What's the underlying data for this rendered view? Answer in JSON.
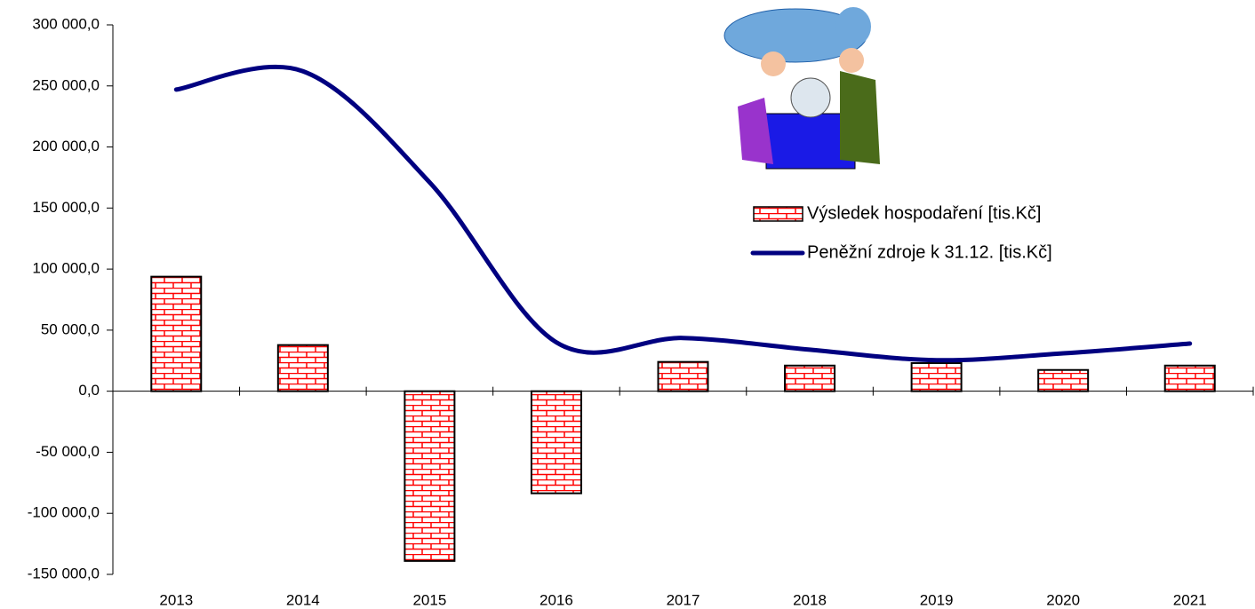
{
  "chart_data": {
    "type": "bar-line",
    "categories": [
      "2013",
      "2014",
      "2015",
      "2016",
      "2017",
      "2018",
      "2019",
      "2020",
      "2021"
    ],
    "series": [
      {
        "name": "Výsledek hospodaření [tis.Kč]",
        "type": "bar",
        "color": "#ff0000",
        "values": [
          93800,
          37800,
          -139000,
          -83600,
          24000,
          21000,
          23000,
          17400,
          21000
        ]
      },
      {
        "name": "Peněžní zdroje k 31.12. [tis.Kč]",
        "type": "line",
        "color": "#000080",
        "values": [
          247000,
          262000,
          171000,
          40000,
          43600,
          34000,
          25400,
          31000,
          39000
        ]
      }
    ],
    "ylim": [
      -150000,
      300000
    ],
    "yticks": [
      {
        "value": -150000,
        "label": "-150 000,0"
      },
      {
        "value": -100000,
        "label": "-100 000,0"
      },
      {
        "value": -50000,
        "label": "-50 000,0"
      },
      {
        "value": 0,
        "label": "0,0"
      },
      {
        "value": 50000,
        "label": "50 000,0"
      },
      {
        "value": 100000,
        "label": "100 000,0"
      },
      {
        "value": 150000,
        "label": "150 000,0"
      },
      {
        "value": 200000,
        "label": "200 000,0"
      },
      {
        "value": 250000,
        "label": "250 000,0"
      },
      {
        "value": 300000,
        "label": "300 000,0"
      }
    ],
    "grid": false
  }
}
